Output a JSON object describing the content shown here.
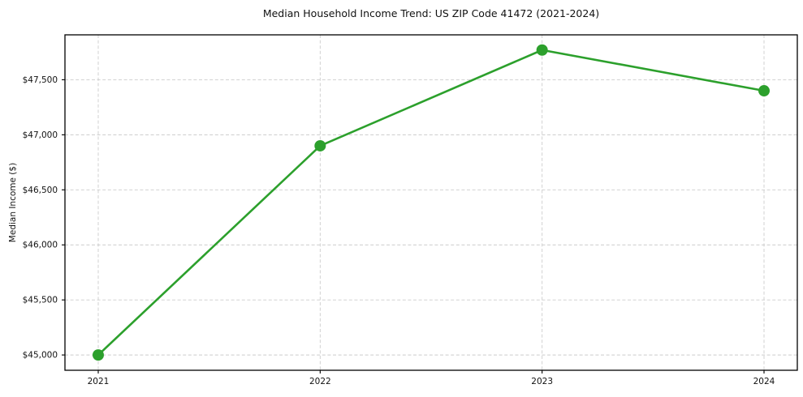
{
  "figure": {
    "title": "Median Household Income Trend: US ZIP Code 41472 (2021-2024)"
  },
  "chart_data": {
    "type": "line",
    "title": "Median Household Income Trend: US ZIP Code 41472 (2021-2024)",
    "xlabel": "",
    "ylabel": "Median Income ($)",
    "x": [
      2021,
      2022,
      2023,
      2024
    ],
    "x_tick_labels": [
      "2021",
      "2022",
      "2023",
      "2024"
    ],
    "series": [
      {
        "name": "Median Household Income",
        "values": [
          45000,
          46900,
          47770,
          47400
        ],
        "color": "#2ca02c",
        "marker": "circle"
      }
    ],
    "y_ticks": [
      45000,
      45500,
      46000,
      46500,
      47000,
      47500
    ],
    "y_tick_labels": [
      "$45,000",
      "$45,500",
      "$46,000",
      "$46,500",
      "$47,000",
      "$47,500"
    ],
    "xlim": [
      2020.85,
      2024.15
    ],
    "ylim": [
      44861,
      47908
    ],
    "grid": true,
    "grid_style": "dashed",
    "grid_color": "#cccccc",
    "spine_color": "#000000",
    "background": "#ffffff",
    "legend": "none"
  }
}
